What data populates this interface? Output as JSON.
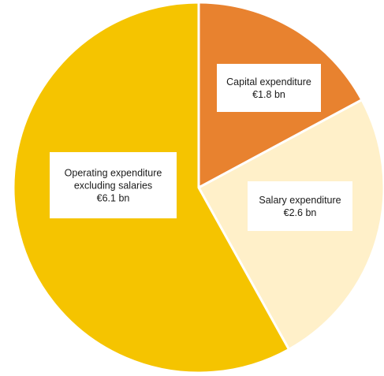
{
  "chart_data": {
    "type": "pie",
    "title": "",
    "slices": [
      {
        "label_lines": [
          "Capital expenditure",
          "€1.8 bn"
        ],
        "value": 1.8,
        "color": "#E8822F"
      },
      {
        "label_lines": [
          "Salary expenditure",
          "€2.6 bn"
        ],
        "value": 2.6,
        "color": "#FFF0C9"
      },
      {
        "label_lines": [
          "Operating expenditure",
          "excluding salaries",
          "€6.1 bn"
        ],
        "value": 6.1,
        "color": "#F5C400"
      }
    ],
    "start_angle_deg": 0,
    "direction": "clockwise",
    "slice_separator_color": "#ffffff"
  }
}
